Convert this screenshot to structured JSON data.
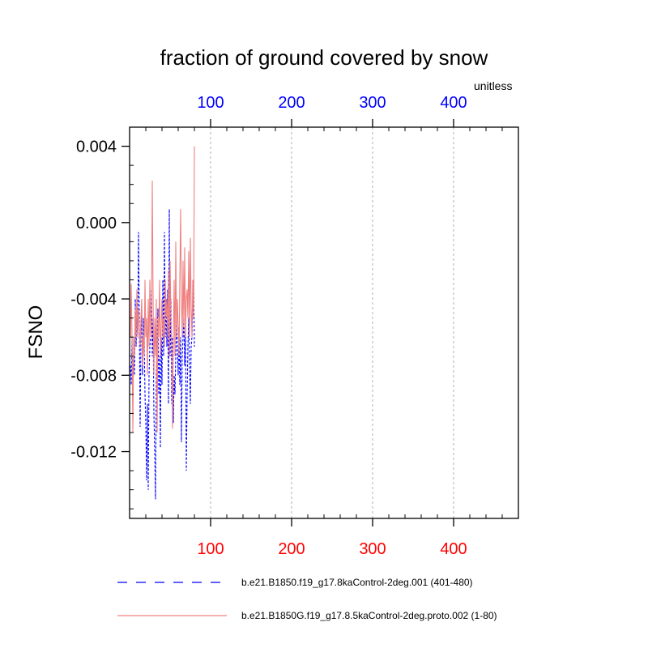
{
  "chart_data": {
    "type": "line",
    "title": "fraction of ground covered by snow",
    "ylabel": "FSNO",
    "units_label": "unitless",
    "xlim": [
      0,
      480
    ],
    "ylim": [
      -0.0155,
      0.005
    ],
    "bottom_ticks": [
      100,
      200,
      300,
      400
    ],
    "top_ticks": [
      100,
      200,
      300,
      400
    ],
    "y_ticks": [
      0.004,
      0.0,
      -0.004,
      -0.008,
      -0.012
    ],
    "y_tick_labels": [
      "0.004",
      "0.000",
      "-0.004",
      "-0.008",
      "-0.012"
    ],
    "grid": "vertical-dashed",
    "bottom_axis_color": "#ff0000",
    "top_axis_color": "#0000ff",
    "series": [
      {
        "name": "b.e21.B1850.f19_g17.8kaControl-2deg.001 (401-480)",
        "color": "#0000ff",
        "style": "dashed",
        "x": [
          1,
          2,
          3,
          4,
          5,
          6,
          7,
          8,
          9,
          10,
          11,
          12,
          13,
          14,
          15,
          16,
          17,
          18,
          19,
          20,
          21,
          22,
          23,
          24,
          25,
          26,
          27,
          28,
          29,
          30,
          31,
          32,
          33,
          34,
          35,
          36,
          37,
          38,
          39,
          40,
          41,
          42,
          43,
          44,
          45,
          46,
          47,
          48,
          49,
          50,
          51,
          52,
          53,
          54,
          55,
          56,
          57,
          58,
          59,
          60,
          61,
          62,
          63,
          64,
          65,
          66,
          67,
          68,
          69,
          70,
          71,
          72,
          73,
          74,
          75,
          76,
          77,
          78,
          79,
          80
        ],
        "values": [
          -0.0075,
          -0.0085,
          -0.006,
          -0.009,
          -0.007,
          -0.008,
          -0.004,
          -0.0065,
          -0.005,
          -0.006,
          -0.0005,
          -0.005,
          -0.0107,
          -0.006,
          -0.0045,
          -0.008,
          -0.005,
          -0.006,
          -0.009,
          -0.0105,
          -0.0135,
          -0.0095,
          -0.014,
          -0.008,
          -0.0065,
          -0.006,
          -0.0035,
          -0.007,
          -0.005,
          -0.01,
          -0.012,
          -0.0145,
          -0.008,
          -0.006,
          -0.0045,
          -0.009,
          -0.007,
          -0.0118,
          -0.006,
          -0.0085,
          -0.003,
          -0.007,
          -0.0005,
          -0.006,
          -0.004,
          -0.0065,
          -0.0035,
          -0.0095,
          0.0007,
          -0.007,
          -0.004,
          -0.0095,
          -0.006,
          -0.0105,
          -0.008,
          -0.009,
          -0.007,
          -0.005,
          -0.0065,
          -0.008,
          -0.0055,
          -0.0085,
          -0.006,
          -0.0115,
          -0.007,
          -0.006,
          -0.005,
          -0.0075,
          -0.0055,
          -0.013,
          -0.009,
          -0.0065,
          -0.005,
          -0.0075,
          -0.0095,
          -0.0065,
          -0.006,
          -0.0045,
          -0.003,
          -0.0065
        ]
      },
      {
        "name": "b.e21.B1850G.f19_g17.8.5kaControl-2deg.proto.002 (1-80)",
        "color": "#f08080",
        "style": "solid",
        "x": [
          1,
          2,
          3,
          4,
          5,
          6,
          7,
          8,
          9,
          10,
          11,
          12,
          13,
          14,
          15,
          16,
          17,
          18,
          19,
          20,
          21,
          22,
          23,
          24,
          25,
          26,
          27,
          28,
          29,
          30,
          31,
          32,
          33,
          34,
          35,
          36,
          37,
          38,
          39,
          40,
          41,
          42,
          43,
          44,
          45,
          46,
          47,
          48,
          49,
          50,
          51,
          52,
          53,
          54,
          55,
          56,
          57,
          58,
          59,
          60,
          61,
          62,
          63,
          64,
          65,
          66,
          67,
          68,
          69,
          70,
          71,
          72,
          73,
          74,
          75,
          76,
          77,
          78,
          79,
          80
        ],
        "values": [
          -0.006,
          -0.0032,
          -0.006,
          -0.011,
          -0.006,
          -0.007,
          -0.0045,
          -0.006,
          -0.0035,
          -0.006,
          -0.0045,
          -0.0055,
          -0.0065,
          -0.005,
          -0.004,
          -0.0075,
          -0.006,
          -0.007,
          -0.003,
          -0.006,
          -0.005,
          -0.008,
          -0.004,
          -0.0065,
          -0.003,
          -0.006,
          -0.005,
          0.0022,
          -0.004,
          -0.008,
          -0.005,
          -0.007,
          -0.004,
          -0.011,
          -0.005,
          -0.006,
          -0.003,
          -0.007,
          -0.0055,
          -0.004,
          -0.006,
          -0.005,
          -0.0065,
          -0.003,
          -0.005,
          -0.004,
          -0.006,
          -0.0025,
          -0.007,
          -0.002,
          -0.005,
          -0.0065,
          -0.0108,
          -0.006,
          -0.003,
          -0.007,
          -0.001,
          -0.006,
          -0.004,
          -0.0055,
          -0.007,
          -0.003,
          0.0007,
          -0.004,
          -0.006,
          -0.002,
          -0.0055,
          -0.0013,
          -0.006,
          -0.004,
          -0.0035,
          -0.005,
          -0.0015,
          -0.006,
          -0.0008,
          -0.0045,
          -0.006,
          -0.003,
          -0.005,
          0.004
        ]
      }
    ]
  }
}
